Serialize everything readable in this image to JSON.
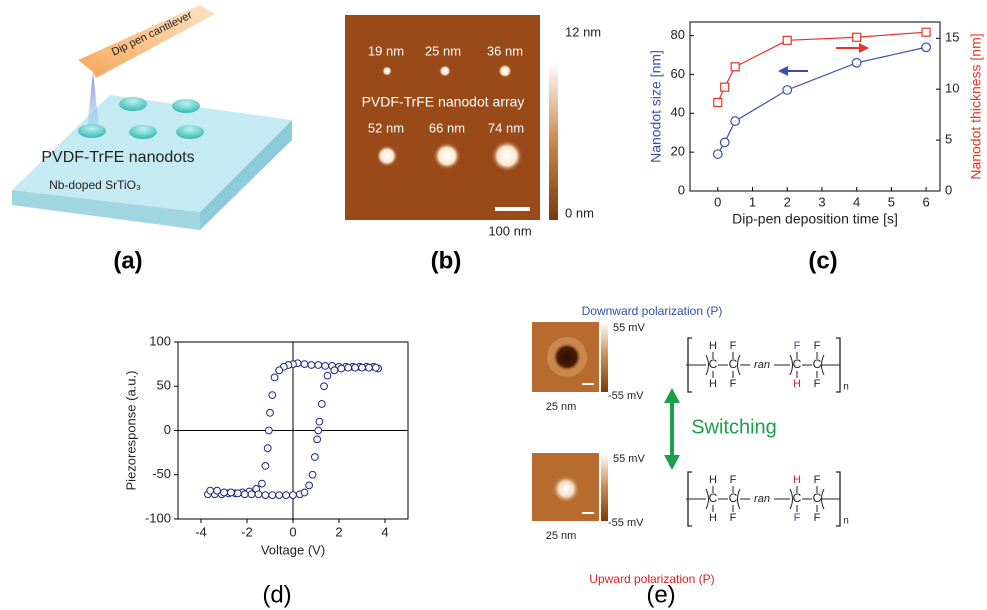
{
  "panel_a": {
    "cantilever": "Dip pen cantilever",
    "nanodots": "PVDF-TrFE nanodots",
    "substrate": "Nb-doped SrTiO₃",
    "label": "(a)"
  },
  "panel_b": {
    "dot_sizes_top": [
      "19 nm",
      "25 nm",
      "36 nm"
    ],
    "dot_sizes_bottom": [
      "52 nm",
      "66 nm",
      "74 nm"
    ],
    "caption": "PVDF-TrFE nanodot array",
    "scale_max": "12 nm",
    "scale_min": "0 nm",
    "scale_bar": "100 nm",
    "label": "(b)"
  },
  "chart_data": [
    {
      "type": "line",
      "panel_label": "(c)",
      "xlabel": "Dip-pen deposition time [s]",
      "ylabel": "Nanodot size [nm]",
      "y2label": "Nanodot thickness [nm]",
      "x": [
        0,
        0.2,
        0.5,
        2,
        4,
        6
      ],
      "series": [
        {
          "color": "#3b4fa8",
          "marker": "circle",
          "values": [
            19,
            25,
            36,
            52,
            66,
            74
          ]
        },
        {
          "color": "#e8332a",
          "marker": "square",
          "axis": "y2",
          "values": [
            8.7,
            10.2,
            12.2,
            14.8,
            15.1,
            15.6
          ]
        }
      ],
      "xlim": [
        -0.8,
        6.4
      ],
      "xticks": [
        0,
        1,
        2,
        3,
        4,
        5,
        6
      ],
      "ylim": [
        0,
        87
      ],
      "yticks": [
        0,
        20,
        40,
        60,
        80
      ],
      "y2lim": [
        0,
        16.6
      ],
      "y2ticks": [
        0,
        5,
        10,
        15
      ]
    },
    {
      "type": "scatter",
      "panel_label": "(d)",
      "xlabel": "Voltage (V)",
      "ylabel": "Piezoresponse (a.u.)",
      "color": "#1f2a78",
      "zero_lines": true,
      "x": [
        3.7,
        3.5,
        3.2,
        2.9,
        2.6,
        2.3,
        2.0,
        1.7,
        1.4,
        1.1,
        0.8,
        0.5,
        0.2,
        0.0,
        -0.2,
        -0.4,
        -0.6,
        -0.8,
        -0.9,
        -1.0,
        -1.05,
        -1.1,
        -1.2,
        -1.35,
        -1.6,
        -1.9,
        -2.2,
        -2.5,
        -2.8,
        -3.1,
        -3.4,
        -3.7,
        -3.6,
        -3.3,
        -3.0,
        -2.7,
        -2.4,
        -2.1,
        -1.8,
        -1.5,
        -1.2,
        -0.9,
        -0.6,
        -0.3,
        0.0,
        0.3,
        0.5,
        0.7,
        0.85,
        0.95,
        1.05,
        1.1,
        1.15,
        1.25,
        1.35,
        1.5,
        1.8,
        2.1,
        2.4,
        2.7,
        3.0,
        3.3,
        3.6
      ],
      "y": [
        70,
        72,
        72,
        72,
        72,
        72,
        72,
        73,
        73,
        74,
        74,
        75,
        76,
        75,
        74,
        72,
        68,
        60,
        40,
        20,
        0,
        -20,
        -40,
        -60,
        -66,
        -69,
        -70,
        -71,
        -71,
        -72,
        -72,
        -72,
        -68,
        -68,
        -70,
        -70,
        -71,
        -72,
        -72,
        -72,
        -73,
        -73,
        -73,
        -73,
        -73,
        -72,
        -70,
        -62,
        -50,
        -30,
        -10,
        0,
        10,
        30,
        50,
        62,
        68,
        70,
        71,
        71,
        71,
        71,
        71
      ],
      "xlim": [
        -5,
        5
      ],
      "xticks": [
        -4,
        -2,
        0,
        2,
        4
      ],
      "ylim": [
        -100,
        100
      ],
      "yticks": [
        -100,
        -50,
        0,
        50,
        100
      ]
    }
  ],
  "panel_e": {
    "top_caption": "Downward polarization (P)",
    "bottom_caption": "Upward polarization (P)",
    "switching": "Switching",
    "images": [
      {
        "scale_max": "55 mV",
        "scale_min": "-55 mV",
        "scale_bar": "25 nm"
      },
      {
        "scale_max": "55 mV",
        "scale_min": "-55 mV",
        "scale_bar": "25 nm"
      }
    ],
    "structures": [
      {
        "upper": [
          "H",
          "F",
          "F",
          "F"
        ],
        "lower": [
          "H",
          "F",
          "H",
          "F"
        ],
        "backbone": [
          "C",
          "C",
          "C",
          "C"
        ],
        "link": "ran",
        "repeat": "n"
      },
      {
        "upper": [
          "H",
          "F",
          "H",
          "F"
        ],
        "lower": [
          "H",
          "F",
          "F",
          "F"
        ],
        "backbone": [
          "C",
          "C",
          "C",
          "C"
        ],
        "link": "ran",
        "repeat": "n"
      }
    ],
    "label": "(e)"
  }
}
